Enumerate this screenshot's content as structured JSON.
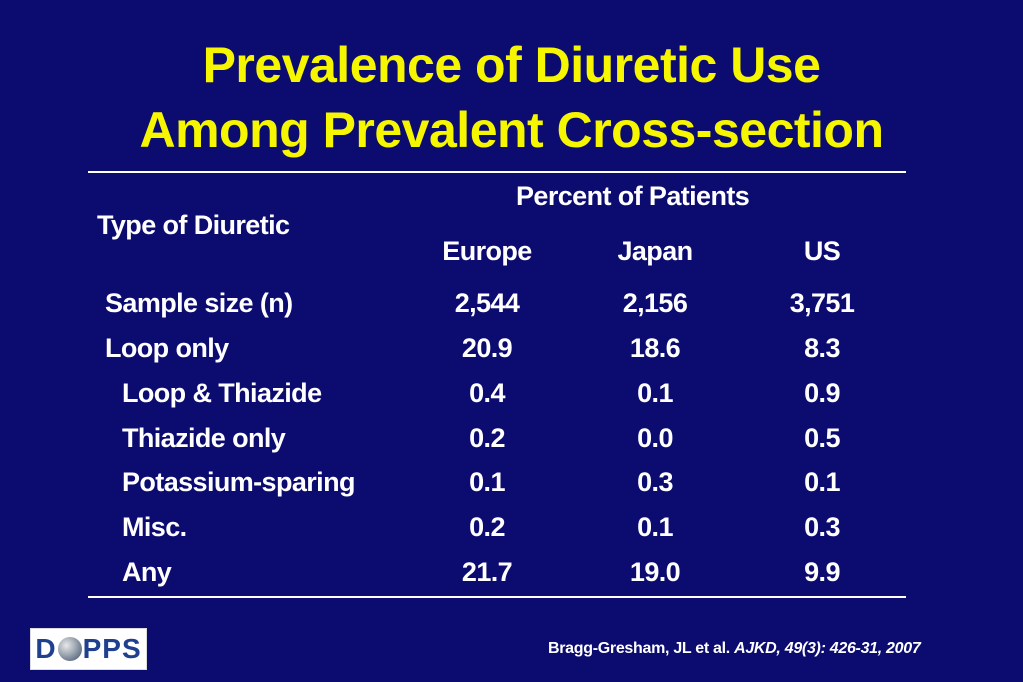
{
  "title_line1": "Prevalence of Diuretic Use",
  "title_line2": "Among Prevalent Cross-section",
  "table": {
    "group_header": "Percent of Patients",
    "type_header": "Type of Diuretic",
    "columns": [
      "Europe",
      "Japan",
      "US"
    ],
    "rows": [
      {
        "label": "Sample size (n)",
        "values": [
          "2,544",
          "2,156",
          "3,751"
        ]
      },
      {
        "label": "Loop only",
        "values": [
          "20.9",
          "18.6",
          "8.3"
        ]
      },
      {
        "label": "Loop & Thiazide",
        "values": [
          "0.4",
          "0.1",
          "0.9"
        ]
      },
      {
        "label": "Thiazide only",
        "values": [
          "0.2",
          "0.0",
          "0.5"
        ]
      },
      {
        "label": "Potassium-sparing",
        "values": [
          "0.1",
          "0.3",
          "0.1"
        ]
      },
      {
        "label": "Misc.",
        "values": [
          "0.2",
          "0.1",
          "0.3"
        ]
      },
      {
        "label": "Any",
        "values": [
          "21.7",
          "19.0",
          "9.9"
        ]
      }
    ]
  },
  "logo": {
    "left": "D",
    "right": "PPS"
  },
  "citation": {
    "authors": "Bragg-Gresham, JL et al.",
    "source": "AJKD, 49(3): 426-31, 2007"
  },
  "colors": {
    "background": "#0b0b70",
    "title": "#f6f600",
    "text": "#ffffff"
  }
}
